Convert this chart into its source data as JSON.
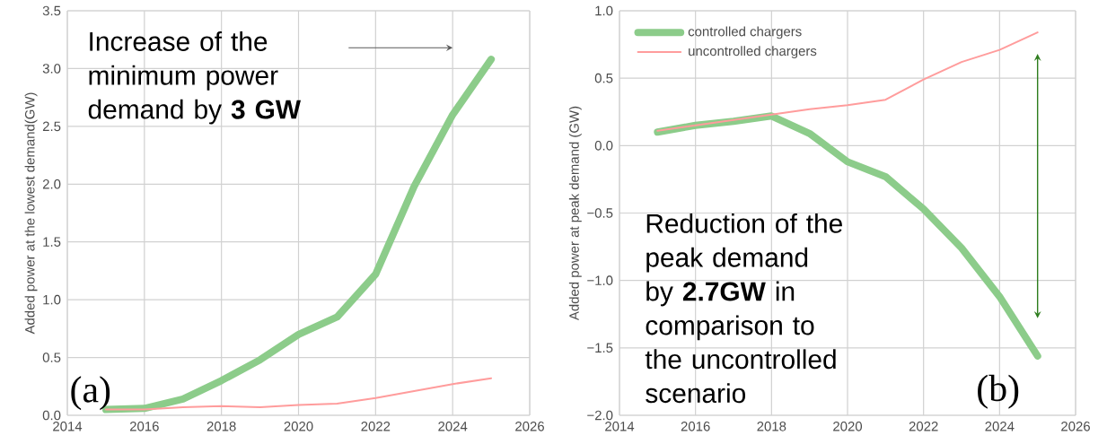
{
  "chart_data": [
    {
      "type": "line",
      "ylabel": "Added power at the lowest demand(GW)",
      "xlim": [
        2014,
        2026
      ],
      "xticks": [
        2014,
        2016,
        2018,
        2020,
        2022,
        2024,
        2026
      ],
      "ylim": [
        0,
        3.5
      ],
      "yticks": [
        {
          "value": 0,
          "label": "0.0"
        },
        0.5,
        {
          "value": 1,
          "label": "1.0"
        },
        1.5,
        {
          "value": 2,
          "label": "2.0"
        },
        2.5,
        {
          "value": 3,
          "label": "3.0"
        },
        3.5
      ],
      "grid": true,
      "x": [
        2015,
        2016,
        2017,
        2018,
        2019,
        2020,
        2021,
        2022,
        2023,
        2024,
        2025
      ],
      "series": [
        {
          "color": "#8ccc8a",
          "values": [
            0.05,
            0.06,
            0.14,
            0.3,
            0.48,
            0.7,
            0.85,
            1.22,
            1.98,
            2.6,
            3.08
          ]
        },
        {
          "color": "#ff9c9c",
          "values": [
            0.05,
            0.05,
            0.07,
            0.08,
            0.07,
            0.09,
            0.1,
            0.15,
            0.21,
            0.27,
            0.32
          ]
        }
      ],
      "annotations": [
        "Increase of the minimum power demand by **3 GW**",
        "(a)"
      ]
    },
    {
      "type": "line",
      "ylabel": "Added power at peak demand (GW)",
      "xlim": [
        2014,
        2026
      ],
      "xticks": [
        2014,
        2016,
        2018,
        2020,
        2022,
        2024,
        2026
      ],
      "ylim": [
        -2,
        1
      ],
      "yticks": [
        {
          "value": -2,
          "label": "−2.0"
        },
        {
          "value": -1.5,
          "label": "−1.5"
        },
        {
          "value": -1,
          "label": "−1.0"
        },
        {
          "value": -0.5,
          "label": "−0.5"
        },
        {
          "value": 0,
          "label": "0.0"
        },
        0.5,
        {
          "value": 1,
          "label": "1.0"
        }
      ],
      "grid": true,
      "legend": "top left",
      "x": [
        2015,
        2016,
        2017,
        2018,
        2019,
        2020,
        2021,
        2022,
        2023,
        2024,
        2025
      ],
      "series": [
        {
          "name": "controlled chargers",
          "color": "#8ccc8a",
          "values": [
            0.1,
            0.15,
            0.18,
            0.22,
            0.09,
            -0.12,
            -0.23,
            -0.47,
            -0.76,
            -1.12,
            -1.56
          ]
        },
        {
          "name": "uncontrolled chargers",
          "color": "#ff9c9c",
          "values": [
            0.11,
            0.15,
            0.19,
            0.23,
            0.27,
            0.3,
            0.34,
            0.49,
            0.62,
            0.71,
            0.84
          ]
        }
      ],
      "annotations": [
        "Reduction of the peak demand by **2.7GW** in comparison to the uncontrolled scenario",
        "(b)"
      ]
    }
  ]
}
